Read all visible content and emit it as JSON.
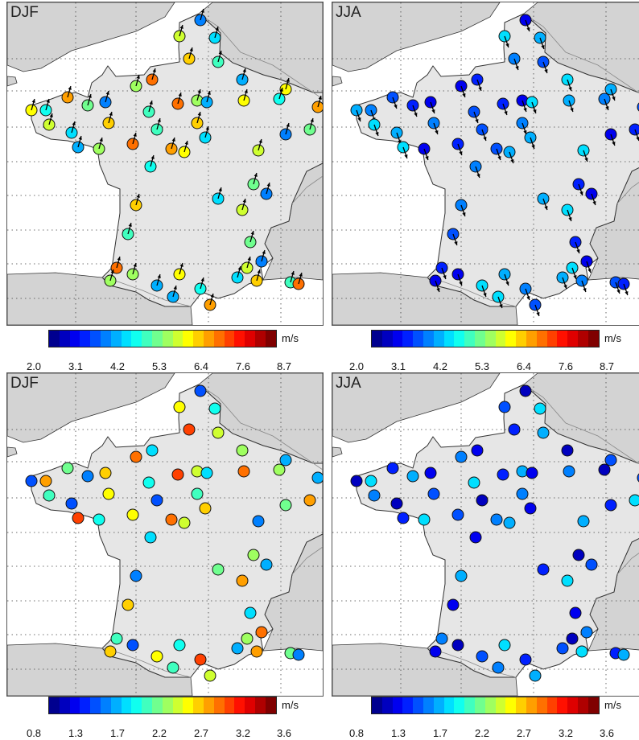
{
  "figure": {
    "panels": [
      {
        "id": "top-left",
        "season_label": "DJF",
        "kind": "mean",
        "colorbar_ref": "top"
      },
      {
        "id": "top-right",
        "season_label": "JJA",
        "kind": "mean",
        "colorbar_ref": "top"
      },
      {
        "id": "bottom-left",
        "season_label": "DJF",
        "kind": "std",
        "colorbar_ref": "bottom"
      },
      {
        "id": "bottom-right",
        "season_label": "JJA",
        "kind": "std",
        "colorbar_ref": "bottom"
      }
    ],
    "colorbars": {
      "top": {
        "unit": "m/s",
        "ticks": [
          "2.0",
          "3.1",
          "4.2",
          "5.3",
          "6.4",
          "7.6",
          "8.7"
        ],
        "min": 2.0,
        "max": 8.7
      },
      "bottom": {
        "unit": "m/s",
        "ticks": [
          "0.8",
          "1.3",
          "1.7",
          "2.2",
          "2.7",
          "3.2",
          "3.6"
        ],
        "min": 0.8,
        "max": 3.6
      }
    },
    "colors": {
      "land_france": "#e6e6e6",
      "land_other": "#d3d3d3",
      "sea": "#ffffff",
      "coastline": "#333333",
      "border": "#888888",
      "grid": "#444444",
      "arrow": "#000000"
    },
    "colormap": [
      "#00008f",
      "#0000bf",
      "#0000ef",
      "#0020ff",
      "#0050ff",
      "#0080ff",
      "#00afff",
      "#00dfff",
      "#10ffef",
      "#40ffbf",
      "#70ff8f",
      "#9fff60",
      "#cfff30",
      "#ffff00",
      "#ffcf00",
      "#ff9f00",
      "#ff7000",
      "#ff4000",
      "#ff1000",
      "#df0000",
      "#af0000",
      "#800000"
    ]
  }
}
